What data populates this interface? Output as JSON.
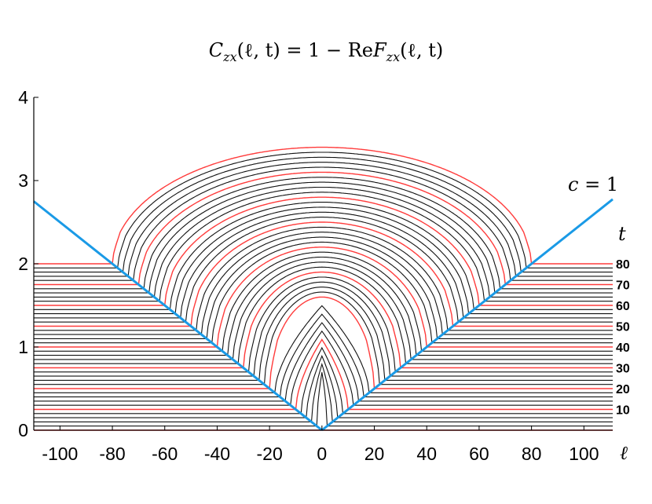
{
  "chart_data": {
    "type": "line",
    "title": "C_zx(ℓ,t) = 1 − ReF_zx(ℓ,t)",
    "title_parts": {
      "C": "C",
      "C_sub": "zx",
      "args": "(ℓ, t) = 1 − Re",
      "F": "F",
      "F_sub": "zx",
      "args2": "(ℓ, t)"
    },
    "xlabel": "ℓ",
    "ylabel": "",
    "xlim": [
      -110,
      111
    ],
    "ylim": [
      0,
      4
    ],
    "x_ticks": [
      -100,
      -80,
      -60,
      -40,
      -20,
      0,
      20,
      40,
      60,
      80,
      100
    ],
    "x_tick_labels": [
      "-100",
      "-80",
      "-60",
      "-40",
      "-20",
      "0",
      "20",
      "40",
      "60",
      "80",
      "100"
    ],
    "y_ticks": [
      0,
      1,
      2,
      3,
      4
    ],
    "y_tick_labels": [
      "0",
      "1",
      "2",
      "3",
      "4"
    ],
    "grid": false,
    "legend": "none",
    "series_description": "Stacked curves for t = 0 to 80 in steps of 2, each offset vertically by 0.025·t; every 10th curve highlighted in red.",
    "t_values": {
      "start": 0,
      "end": 80,
      "step": 2
    },
    "vertical_offset_per_t": 0.025,
    "curve_model": {
      "saturation": 1.0,
      "peak_height_at_80": 1.4
    },
    "right_axis": {
      "label": "t",
      "ticks": [
        10,
        20,
        30,
        40,
        50,
        60,
        70,
        80
      ],
      "tick_labels": [
        "10",
        "20",
        "30",
        "40",
        "50",
        "60",
        "70",
        "80"
      ]
    },
    "light_cone": {
      "label": "c = 1",
      "label_var": "c",
      "label_rest": " = 1",
      "lines": [
        {
          "x": [
            0,
            -110
          ],
          "y": [
            0,
            2.75
          ]
        },
        {
          "x": [
            0,
            111
          ],
          "y": [
            0,
            2.775
          ]
        }
      ]
    },
    "colors": {
      "curve": "#111111",
      "highlight": "#ff3b3b",
      "light_cone": "#1a9ae6",
      "axis": "#000000"
    }
  }
}
